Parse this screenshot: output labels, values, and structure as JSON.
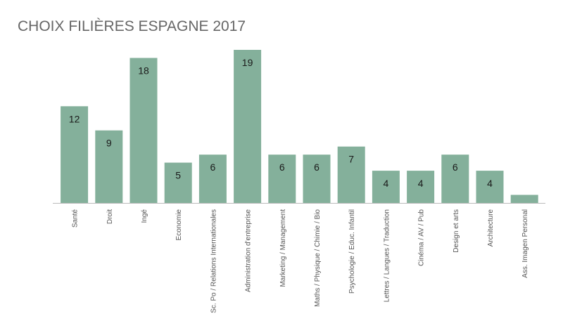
{
  "chart_data": {
    "type": "bar",
    "title": "CHOIX FILIÈRES ESPAGNE 2017",
    "xlabel": "",
    "ylabel": "",
    "ylim": [
      0,
      19
    ],
    "grid": false,
    "legend": "none",
    "bar_color": "#84b09b",
    "categories": [
      "Santé",
      "Droit",
      "Ingé",
      "Economie",
      "Sc. Po / Relations Internationales",
      "Administration d'entreprise",
      "Marketing / Management",
      "Maths / Physique / Chimie / Bio",
      "Psychologie / Educ. Infantil",
      "Lettres / Langues / Traduction",
      "Cinéma / AV / Pub",
      "Design et arts",
      "Architecture",
      "Ass. Imagen Personal"
    ],
    "values": [
      12,
      9,
      18,
      5,
      6,
      19,
      6,
      6,
      7,
      4,
      4,
      6,
      4,
      1
    ],
    "data_labels": [
      "12",
      "9",
      "18",
      "5",
      "6",
      "19",
      "6",
      "6",
      "7",
      "4",
      "4",
      "6",
      "4",
      ""
    ]
  }
}
